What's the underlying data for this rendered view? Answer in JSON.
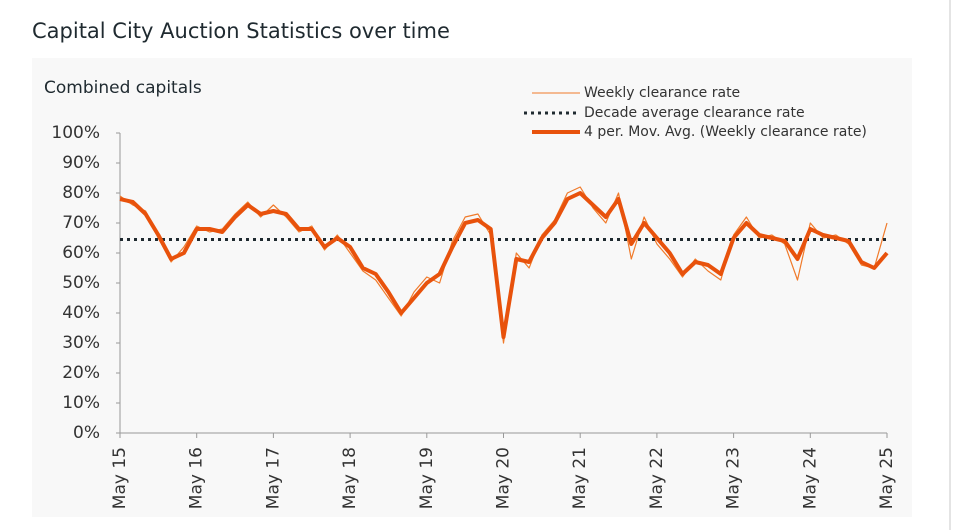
{
  "chart_data": {
    "type": "line",
    "title": "Capital City Auction Statistics over time",
    "subtitle": "Combined capitals",
    "categories": [
      "May 15",
      null,
      null,
      null,
      null,
      null,
      "May 16",
      null,
      null,
      null,
      null,
      null,
      "May 17",
      null,
      null,
      null,
      null,
      null,
      "May 18",
      null,
      null,
      null,
      null,
      null,
      "May 19",
      null,
      null,
      null,
      null,
      null,
      "May 20",
      null,
      null,
      null,
      null,
      null,
      "May 21",
      null,
      null,
      null,
      null,
      null,
      "May 22",
      null,
      null,
      null,
      null,
      null,
      "May 23",
      null,
      null,
      null,
      null,
      null,
      "May 24",
      null,
      null,
      null,
      null,
      null,
      "May 25"
    ],
    "series": [
      {
        "name": "Weekly clearance rate",
        "color": "#f07a2a",
        "style": "thin",
        "values": [
          79,
          76,
          74,
          65,
          57,
          62,
          69,
          67,
          68,
          73,
          77,
          72,
          76,
          72,
          67,
          69,
          61,
          66,
          60,
          54,
          51,
          45,
          39,
          47,
          52,
          50,
          64,
          72,
          73,
          66,
          30,
          60,
          55,
          66,
          71,
          80,
          82,
          75,
          70,
          80,
          58,
          72,
          63,
          58,
          52,
          58,
          54,
          51,
          66,
          72,
          65,
          66,
          63,
          51,
          70,
          65,
          66,
          63,
          56,
          55,
          70
        ]
      },
      {
        "name": "Decade average clearance rate",
        "color": "#1f2a30",
        "style": "dotted",
        "value": 64.5
      },
      {
        "name": "4 per. Mov. Avg. (Weekly clearance rate)",
        "color": "#e8520c",
        "style": "thick",
        "values": [
          78,
          77,
          73,
          66,
          58,
          60,
          68,
          68,
          67,
          72,
          76,
          73,
          74,
          73,
          68,
          68,
          62,
          65,
          62,
          55,
          53,
          47,
          40,
          45,
          50,
          53,
          62,
          70,
          71,
          68,
          32,
          58,
          57,
          65,
          70,
          78,
          80,
          76,
          72,
          78,
          63,
          70,
          65,
          60,
          53,
          57,
          56,
          53,
          65,
          70,
          66,
          65,
          64,
          58,
          68,
          66,
          65,
          64,
          57,
          55,
          60
        ]
      }
    ],
    "ylim": [
      0,
      100
    ],
    "yticks": [
      {
        "value": 0,
        "label": "0%"
      },
      {
        "value": 10,
        "label": "10%"
      },
      {
        "value": 20,
        "label": "20%"
      },
      {
        "value": 30,
        "label": "30%"
      },
      {
        "value": 40,
        "label": "40%"
      },
      {
        "value": 50,
        "label": "50%"
      },
      {
        "value": 60,
        "label": "60%"
      },
      {
        "value": 70,
        "label": "70%"
      },
      {
        "value": 80,
        "label": "80%"
      },
      {
        "value": 90,
        "label": "90%"
      },
      {
        "value": 100,
        "label": "100%"
      }
    ],
    "grid": false
  }
}
